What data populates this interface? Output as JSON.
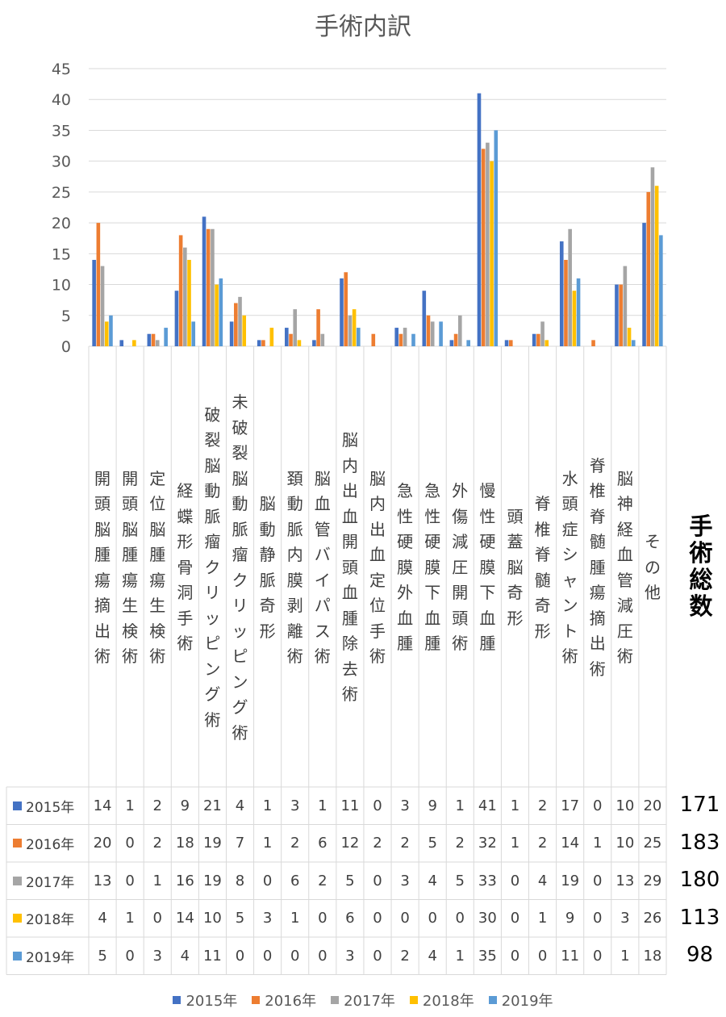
{
  "chart_data": {
    "type": "bar",
    "title": "手術内訳",
    "ylim": [
      0,
      45
    ],
    "yticks": [
      "0",
      "5",
      "10",
      "15",
      "20",
      "25",
      "30",
      "35",
      "40",
      "45"
    ],
    "grid": true,
    "legend_position": "bottom",
    "categories": [
      "開頭脳腫瘍摘出術",
      "開頭脳腫瘍生検術",
      "定位脳腫瘍生検術",
      "経蝶形骨洞手術",
      "破裂脳動脈瘤クリッピング術",
      "未破裂脳動脈瘤クリッピング術",
      "脳動静脈奇形",
      "頚動脈内膜剥離術",
      "脳血管バイパス術",
      "脳内出血開頭血腫除去術",
      "脳内出血定位手術",
      "急性硬膜外血腫",
      "急性硬膜下血腫",
      "外傷減圧開頭術",
      "慢性硬膜下血腫",
      "頭蓋脳奇形",
      "脊椎脊髄奇形",
      "水頭症シャント術",
      "脊椎脊髄腫瘍摘出術",
      "脳神経血管減圧術",
      "その他"
    ],
    "series": [
      {
        "name": "2015年",
        "color": "#4472C4",
        "values": [
          14,
          1,
          2,
          9,
          21,
          4,
          1,
          3,
          1,
          11,
          0,
          3,
          9,
          1,
          41,
          1,
          2,
          17,
          0,
          10,
          20
        ]
      },
      {
        "name": "2016年",
        "color": "#ED7D31",
        "values": [
          20,
          0,
          2,
          18,
          19,
          7,
          1,
          2,
          6,
          12,
          2,
          2,
          5,
          2,
          32,
          1,
          2,
          14,
          1,
          10,
          25
        ]
      },
      {
        "name": "2017年",
        "color": "#A5A5A5",
        "values": [
          13,
          0,
          1,
          16,
          19,
          8,
          0,
          6,
          2,
          5,
          0,
          3,
          4,
          5,
          33,
          0,
          4,
          19,
          0,
          13,
          29
        ]
      },
      {
        "name": "2018年",
        "color": "#FFC000",
        "values": [
          4,
          1,
          0,
          14,
          10,
          5,
          3,
          1,
          0,
          6,
          0,
          0,
          0,
          0,
          30,
          0,
          1,
          9,
          0,
          3,
          26
        ]
      },
      {
        "name": "2019年",
        "color": "#5B9BD5",
        "values": [
          5,
          0,
          3,
          4,
          11,
          0,
          0,
          0,
          0,
          3,
          0,
          2,
          4,
          1,
          35,
          0,
          0,
          11,
          0,
          1,
          18
        ]
      }
    ],
    "totals_header": "手術総数",
    "totals": [
      "171",
      "183",
      "180",
      "113",
      "98"
    ]
  }
}
